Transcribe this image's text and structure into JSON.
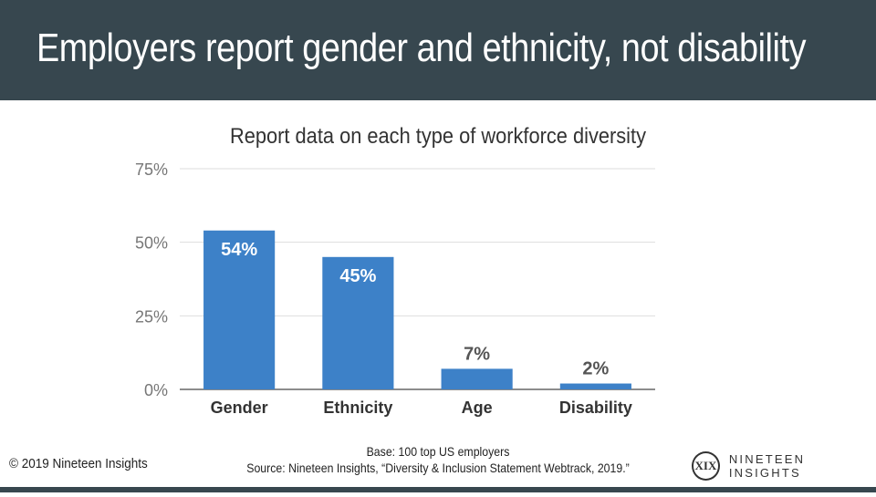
{
  "header": {
    "title": "Employers report gender and ethnicity, not disability"
  },
  "chart_data": {
    "type": "bar",
    "title": "Report data on each type of workforce diversity",
    "categories": [
      "Gender",
      "Ethnicity",
      "Age",
      "Disability"
    ],
    "values": [
      54,
      45,
      7,
      2
    ],
    "value_labels": [
      "54%",
      "45%",
      "7%",
      "2%"
    ],
    "ylim": [
      0,
      75
    ],
    "yticks": [
      0,
      25,
      50,
      75
    ],
    "ytick_labels": [
      "0%",
      "25%",
      "50%",
      "75%"
    ],
    "grid": true,
    "bar_color": "#3d81c8"
  },
  "footer": {
    "copyright": "© 2019 Nineteen Insights",
    "base": "Base: 100 top US employers",
    "source": "Source: Nineteen Insights, “Diversity & Inclusion Statement Webtrack, 2019.”",
    "logo_mark": "XIX",
    "logo_text": "NINETEEN INSIGHTS"
  },
  "colors": {
    "header_bg": "#37474f",
    "bar": "#3d81c8",
    "grid": "#dddddd",
    "axis": "#666666"
  }
}
